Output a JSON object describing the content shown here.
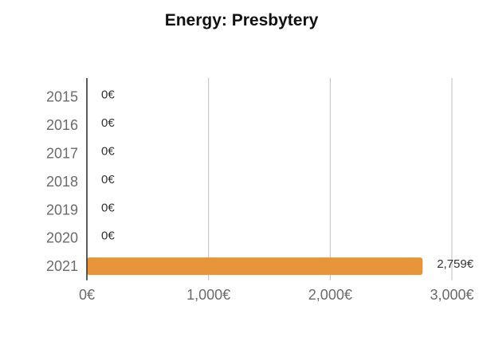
{
  "chart_data": {
    "type": "bar",
    "orientation": "horizontal",
    "title": "Energy: Presbytery",
    "categories": [
      "2015",
      "2016",
      "2017",
      "2018",
      "2019",
      "2020",
      "2021"
    ],
    "values": [
      0,
      0,
      0,
      0,
      0,
      0,
      2759
    ],
    "data_labels": [
      "0€",
      "0€",
      "0€",
      "0€",
      "0€",
      "0€",
      "2,759€"
    ],
    "xlim": [
      0,
      3000
    ],
    "xticks": [
      0,
      1000,
      2000,
      3000
    ],
    "xtick_labels": [
      "0€",
      "1,000€",
      "2,000€",
      "3,000€"
    ],
    "grid": true,
    "legend": "none",
    "colors": {
      "bar": "#E8943A",
      "grid": "#c8c8c8",
      "axis": "#333333"
    }
  }
}
